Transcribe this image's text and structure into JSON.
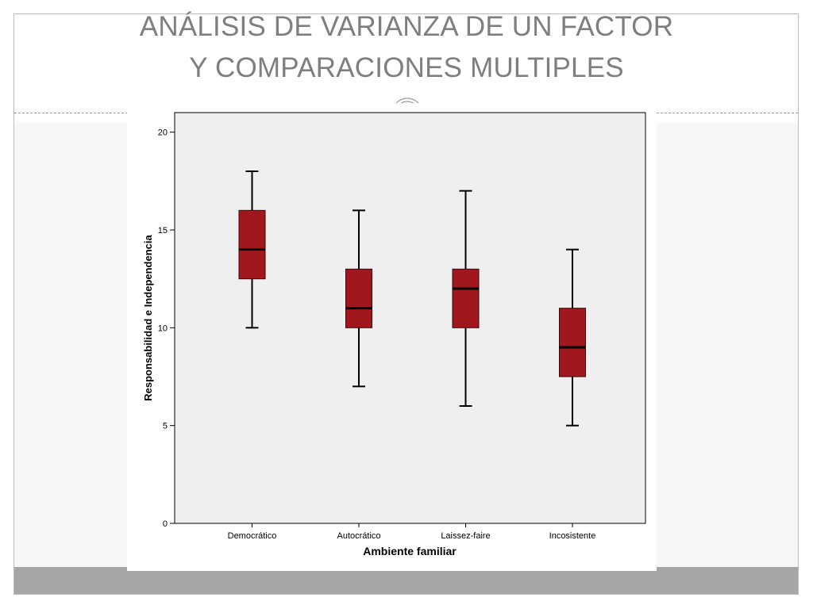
{
  "slide": {
    "title_line1": "ANÁLISIS DE VARIANZA DE UN FACTOR",
    "title_line2": "Y COMPARACIONES MULTIPLES"
  },
  "colors": {
    "box_fill": "#a0171e",
    "plot_background": "#efefef",
    "title_text": "#7f7f7f",
    "bottom_bar": "#a6a6a6"
  },
  "chart_data": {
    "type": "boxplot",
    "title": "",
    "xlabel": "Ambiente familiar",
    "ylabel": "Responsabilidad e Independencia",
    "ylim": [
      0,
      21
    ],
    "yticks": [
      0,
      5,
      10,
      15,
      20
    ],
    "grid": false,
    "categories": [
      "Democrático",
      "Autocrático",
      "Laissez-faire",
      "Incosistente"
    ],
    "boxes": [
      {
        "min": 10,
        "q1": 12.5,
        "median": 14,
        "q3": 16,
        "max": 18
      },
      {
        "min": 7,
        "q1": 10,
        "median": 11,
        "q3": 13,
        "max": 16
      },
      {
        "min": 6,
        "q1": 10,
        "median": 12,
        "q3": 13,
        "max": 17
      },
      {
        "min": 5,
        "q1": 7.5,
        "median": 9,
        "q3": 11,
        "max": 14
      }
    ]
  }
}
